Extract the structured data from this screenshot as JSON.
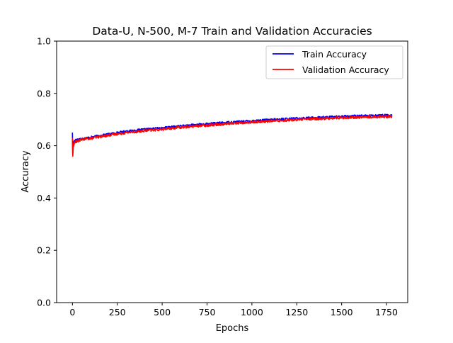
{
  "chart_data": {
    "type": "line",
    "title": "Data-U, N-500, M-7 Train and Validation Accuracies",
    "xlabel": "Epochs",
    "ylabel": "Accuracy",
    "xlim": [
      -88,
      1868
    ],
    "ylim": [
      0,
      1.0
    ],
    "xticks": [
      0,
      250,
      500,
      750,
      1000,
      1250,
      1500,
      1750
    ],
    "yticks": [
      0.0,
      0.2,
      0.4,
      0.6,
      0.8,
      1.0
    ],
    "ytick_labels": [
      "0.0",
      "0.2",
      "0.4",
      "0.6",
      "0.8",
      "1.0"
    ],
    "grid": false,
    "legend_position": "upper right",
    "series": [
      {
        "name": "Train Accuracy",
        "color": "#0000ff",
        "noise": 0.004,
        "x": [
          0,
          1,
          2,
          3,
          5,
          8,
          12,
          20,
          35,
          60,
          100,
          150,
          200,
          250,
          300,
          400,
          500,
          600,
          700,
          800,
          900,
          1000,
          1100,
          1200,
          1300,
          1400,
          1500,
          1600,
          1700,
          1780
        ],
        "y": [
          0.65,
          0.6,
          0.58,
          0.59,
          0.61,
          0.615,
          0.62,
          0.622,
          0.625,
          0.628,
          0.632,
          0.638,
          0.644,
          0.65,
          0.655,
          0.662,
          0.668,
          0.675,
          0.681,
          0.686,
          0.691,
          0.695,
          0.699,
          0.703,
          0.706,
          0.709,
          0.712,
          0.714,
          0.716,
          0.717
        ]
      },
      {
        "name": "Validation Accuracy",
        "color": "#ff0000",
        "noise": 0.005,
        "x": [
          0,
          1,
          2,
          3,
          5,
          8,
          12,
          20,
          35,
          60,
          100,
          150,
          200,
          250,
          300,
          400,
          500,
          600,
          700,
          800,
          900,
          1000,
          1100,
          1200,
          1300,
          1400,
          1500,
          1600,
          1700,
          1780
        ],
        "y": [
          0.63,
          0.575,
          0.56,
          0.57,
          0.6,
          0.605,
          0.612,
          0.615,
          0.62,
          0.625,
          0.628,
          0.634,
          0.64,
          0.645,
          0.65,
          0.657,
          0.663,
          0.67,
          0.676,
          0.681,
          0.686,
          0.69,
          0.694,
          0.698,
          0.701,
          0.704,
          0.707,
          0.709,
          0.711,
          0.712
        ]
      }
    ]
  }
}
